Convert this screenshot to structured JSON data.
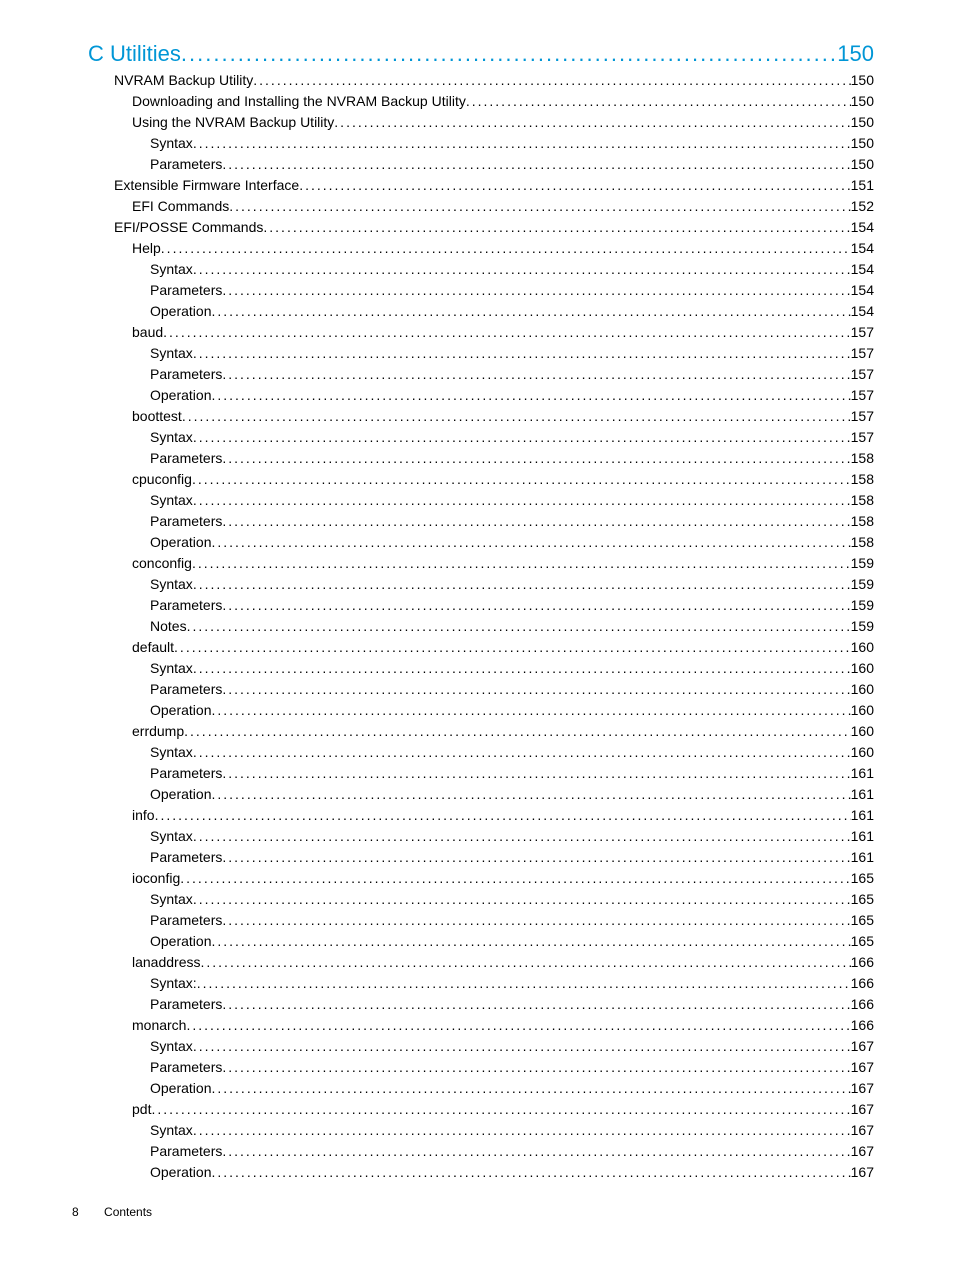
{
  "toc": [
    {
      "level": 1,
      "label": "C Utilities",
      "page": "150"
    },
    {
      "level": 2,
      "label": "NVRAM Backup Utility",
      "page": "150"
    },
    {
      "level": 3,
      "label": "Downloading and Installing the NVRAM Backup Utility",
      "page": "150"
    },
    {
      "level": 3,
      "label": "Using the NVRAM Backup Utility",
      "page": "150"
    },
    {
      "level": 4,
      "label": "Syntax",
      "page": "150"
    },
    {
      "level": 4,
      "label": "Parameters",
      "page": "150"
    },
    {
      "level": 2,
      "label": "Extensible Firmware Interface",
      "page": "151"
    },
    {
      "level": 3,
      "label": "EFI Commands",
      "page": "152"
    },
    {
      "level": 2,
      "label": "EFI/POSSE Commands",
      "page": "154"
    },
    {
      "level": 3,
      "label": "Help",
      "page": "154"
    },
    {
      "level": 4,
      "label": "Syntax",
      "page": "154"
    },
    {
      "level": 4,
      "label": "Parameters",
      "page": "154"
    },
    {
      "level": 4,
      "label": "Operation",
      "page": "154"
    },
    {
      "level": 3,
      "label": "baud",
      "page": "157"
    },
    {
      "level": 4,
      "label": "Syntax",
      "page": "157"
    },
    {
      "level": 4,
      "label": "Parameters",
      "page": "157"
    },
    {
      "level": 4,
      "label": "Operation",
      "page": "157"
    },
    {
      "level": 3,
      "label": "boottest",
      "page": "157"
    },
    {
      "level": 4,
      "label": "Syntax",
      "page": "157"
    },
    {
      "level": 4,
      "label": "Parameters",
      "page": "158"
    },
    {
      "level": 3,
      "label": "cpuconfig",
      "page": "158"
    },
    {
      "level": 4,
      "label": "Syntax",
      "page": "158"
    },
    {
      "level": 4,
      "label": "Parameters",
      "page": "158"
    },
    {
      "level": 4,
      "label": "Operation",
      "page": "158"
    },
    {
      "level": 3,
      "label": "conconfig",
      "page": "159"
    },
    {
      "level": 4,
      "label": "Syntax",
      "page": "159"
    },
    {
      "level": 4,
      "label": "Parameters",
      "page": "159"
    },
    {
      "level": 4,
      "label": "Notes",
      "page": "159"
    },
    {
      "level": 3,
      "label": "default",
      "page": "160"
    },
    {
      "level": 4,
      "label": "Syntax",
      "page": "160"
    },
    {
      "level": 4,
      "label": "Parameters",
      "page": "160"
    },
    {
      "level": 4,
      "label": "Operation",
      "page": "160"
    },
    {
      "level": 3,
      "label": "errdump",
      "page": "160"
    },
    {
      "level": 4,
      "label": "Syntax",
      "page": "160"
    },
    {
      "level": 4,
      "label": "Parameters",
      "page": "161"
    },
    {
      "level": 4,
      "label": "Operation",
      "page": "161"
    },
    {
      "level": 3,
      "label": "info",
      "page": "161"
    },
    {
      "level": 4,
      "label": "Syntax",
      "page": "161"
    },
    {
      "level": 4,
      "label": "Parameters",
      "page": "161"
    },
    {
      "level": 3,
      "label": "ioconfig",
      "page": "165"
    },
    {
      "level": 4,
      "label": "Syntax",
      "page": "165"
    },
    {
      "level": 4,
      "label": "Parameters",
      "page": "165"
    },
    {
      "level": 4,
      "label": "Operation",
      "page": "165"
    },
    {
      "level": 3,
      "label": "lanaddress",
      "page": "166"
    },
    {
      "level": 4,
      "label": "Syntax:",
      "page": "166"
    },
    {
      "level": 4,
      "label": "Parameters",
      "page": "166"
    },
    {
      "level": 3,
      "label": "monarch",
      "page": "166"
    },
    {
      "level": 4,
      "label": "Syntax",
      "page": "167"
    },
    {
      "level": 4,
      "label": "Parameters",
      "page": "167"
    },
    {
      "level": 4,
      "label": "Operation",
      "page": "167"
    },
    {
      "level": 3,
      "label": "pdt",
      "page": "167"
    },
    {
      "level": 4,
      "label": "Syntax",
      "page": "167"
    },
    {
      "level": 4,
      "label": "Parameters",
      "page": "167"
    },
    {
      "level": 4,
      "label": "Operation",
      "page": "167"
    }
  ],
  "footer": {
    "pageNumber": "8",
    "sectionLabel": "Contents"
  }
}
